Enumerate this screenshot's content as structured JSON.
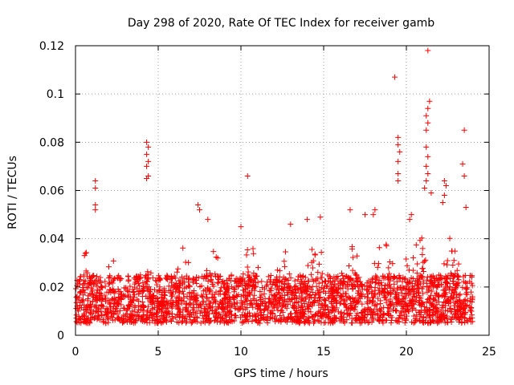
{
  "chart_data": {
    "type": "scatter",
    "title": "Day 298 of 2020, Rate Of TEC Index for receiver gamb",
    "xlabel": "GPS time / hours",
    "ylabel": "ROTI / TECUs",
    "xlim": [
      0,
      25
    ],
    "ylim": [
      0,
      0.12
    ],
    "x_ticks": [
      0,
      5,
      10,
      15,
      20,
      25
    ],
    "x_tick_labels": [
      "0",
      "5",
      "10",
      "15",
      "20",
      "25"
    ],
    "y_ticks": [
      0,
      0.02,
      0.04,
      0.06,
      0.08,
      0.1,
      0.12
    ],
    "y_tick_labels": [
      "0",
      "0.02",
      "0.04",
      "0.06",
      "0.08",
      "0.1",
      "0.12"
    ],
    "grid": true,
    "marker": "+",
    "color": "#ff0000",
    "series": [
      {
        "name": "ROTI",
        "x_range": [
          0,
          24
        ],
        "baseline_band": [
          0.005,
          0.025
        ],
        "envelope": [
          {
            "x": 0.0,
            "upper": 0.025
          },
          {
            "x": 0.5,
            "upper": 0.038
          },
          {
            "x": 1.0,
            "upper": 0.032
          },
          {
            "x": 2.0,
            "upper": 0.034
          },
          {
            "x": 3.0,
            "upper": 0.033
          },
          {
            "x": 4.0,
            "upper": 0.03
          },
          {
            "x": 5.0,
            "upper": 0.028
          },
          {
            "x": 6.0,
            "upper": 0.034
          },
          {
            "x": 7.0,
            "upper": 0.04
          },
          {
            "x": 8.0,
            "upper": 0.042
          },
          {
            "x": 9.0,
            "upper": 0.03
          },
          {
            "x": 10.0,
            "upper": 0.038
          },
          {
            "x": 11.0,
            "upper": 0.04
          },
          {
            "x": 12.0,
            "upper": 0.036
          },
          {
            "x": 13.0,
            "upper": 0.038
          },
          {
            "x": 14.0,
            "upper": 0.04
          },
          {
            "x": 15.0,
            "upper": 0.042
          },
          {
            "x": 16.0,
            "upper": 0.036
          },
          {
            "x": 17.0,
            "upper": 0.04
          },
          {
            "x": 18.0,
            "upper": 0.045
          },
          {
            "x": 19.0,
            "upper": 0.042
          },
          {
            "x": 20.0,
            "upper": 0.044
          },
          {
            "x": 21.0,
            "upper": 0.045
          },
          {
            "x": 22.0,
            "upper": 0.042
          },
          {
            "x": 23.0,
            "upper": 0.04
          },
          {
            "x": 24.0,
            "upper": 0.038
          }
        ],
        "outliers": [
          [
            1.2,
            0.064
          ],
          [
            1.2,
            0.061
          ],
          [
            1.2,
            0.054
          ],
          [
            1.2,
            0.052
          ],
          [
            4.3,
            0.08
          ],
          [
            4.4,
            0.078
          ],
          [
            4.3,
            0.075
          ],
          [
            4.4,
            0.072
          ],
          [
            4.3,
            0.07
          ],
          [
            4.4,
            0.066
          ],
          [
            4.3,
            0.065
          ],
          [
            10.4,
            0.066
          ],
          [
            7.4,
            0.054
          ],
          [
            7.5,
            0.052
          ],
          [
            16.6,
            0.052
          ],
          [
            19.3,
            0.107
          ],
          [
            19.5,
            0.082
          ],
          [
            19.5,
            0.079
          ],
          [
            19.6,
            0.076
          ],
          [
            19.5,
            0.072
          ],
          [
            19.5,
            0.067
          ],
          [
            19.5,
            0.064
          ],
          [
            21.3,
            0.118
          ],
          [
            21.4,
            0.097
          ],
          [
            21.3,
            0.094
          ],
          [
            21.2,
            0.091
          ],
          [
            21.3,
            0.088
          ],
          [
            21.2,
            0.085
          ],
          [
            21.2,
            0.078
          ],
          [
            21.3,
            0.074
          ],
          [
            21.2,
            0.07
          ],
          [
            21.3,
            0.067
          ],
          [
            21.2,
            0.064
          ],
          [
            21.1,
            0.061
          ],
          [
            21.5,
            0.059
          ],
          [
            22.3,
            0.064
          ],
          [
            22.4,
            0.062
          ],
          [
            22.3,
            0.058
          ],
          [
            22.2,
            0.055
          ],
          [
            23.5,
            0.085
          ],
          [
            23.4,
            0.071
          ],
          [
            23.5,
            0.066
          ],
          [
            23.6,
            0.053
          ],
          [
            18.1,
            0.052
          ],
          [
            18.0,
            0.05
          ],
          [
            17.5,
            0.05
          ],
          [
            20.3,
            0.05
          ],
          [
            20.2,
            0.048
          ],
          [
            14.8,
            0.049
          ],
          [
            14.0,
            0.048
          ],
          [
            8.0,
            0.048
          ],
          [
            10.0,
            0.045
          ],
          [
            13.0,
            0.046
          ]
        ]
      }
    ]
  }
}
